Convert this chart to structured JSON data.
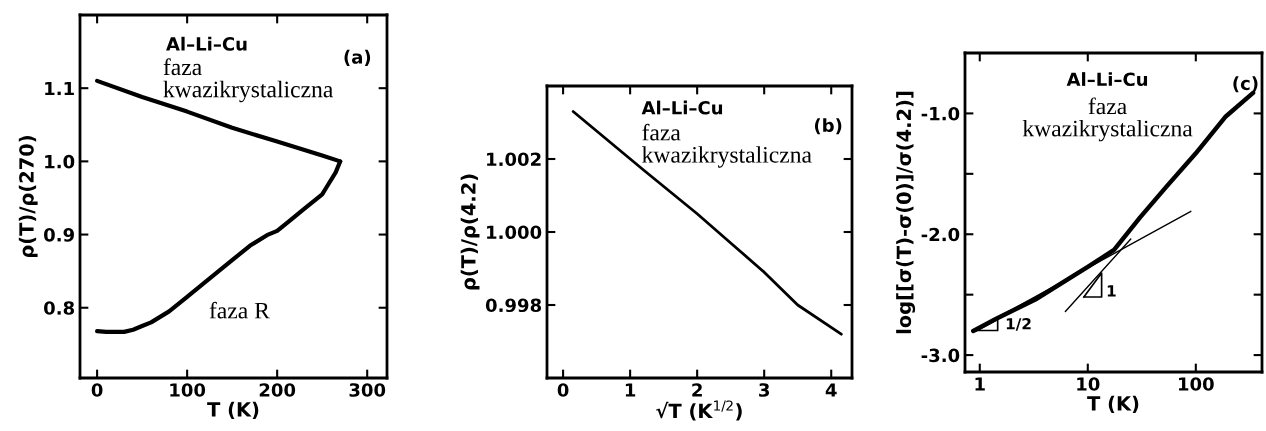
{
  "chart_data": [
    {
      "type": "line",
      "xlabel": "T (K)",
      "ylabel": "ρ(T)/ρ(270)",
      "xlim": [
        -19,
        322
      ],
      "ylim": [
        0.704,
        1.2
      ],
      "xticks": [
        0,
        100,
        200,
        300
      ],
      "yticks": [
        0.8,
        0.9,
        {
          "value": 1.0,
          "label": "1.0"
        },
        1.1
      ],
      "grid": false,
      "legend": false,
      "marker": "none",
      "line_style": "solid",
      "annotations": [
        "Al–Li–Cu",
        "faza\nkwazikrystaliczna",
        "(a)",
        "faza R"
      ],
      "series": [
        {
          "color": "#000000",
          "x": [
            0,
            50,
            100,
            150,
            200,
            250,
            270
          ],
          "values": [
            1.11,
            1.088,
            1.068,
            1.046,
            1.027,
            1.008,
            1.0
          ]
        },
        {
          "color": "#000000",
          "x": [
            0,
            10,
            20,
            30,
            40,
            50,
            60,
            80,
            100,
            120,
            150,
            170,
            190,
            200,
            210,
            230,
            250,
            255,
            265,
            270
          ],
          "values": [
            0.768,
            0.767,
            0.767,
            0.767,
            0.77,
            0.775,
            0.78,
            0.795,
            0.815,
            0.835,
            0.865,
            0.885,
            0.9,
            0.905,
            0.915,
            0.935,
            0.955,
            0.965,
            0.985,
            1.0
          ]
        }
      ]
    },
    {
      "type": "line",
      "xlabel": "√T (K$^{1/2}$)",
      "ylabel": "ρ(T)/ρ(4.2)",
      "xlim": [
        -0.24,
        4.31
      ],
      "ylim": [
        0.996,
        1.004
      ],
      "xticks": [
        0,
        1,
        2,
        3,
        4
      ],
      "yticks": [
        {
          "value": 0.998,
          "label": "0.998"
        },
        {
          "value": 1.0,
          "label": "1.000"
        },
        {
          "value": 1.002,
          "label": "1.002"
        }
      ],
      "grid": false,
      "legend": false,
      "marker": "none",
      "line_style": "solid",
      "annotations": [
        "Al–Li–Cu",
        "faza\nkwazikrystaliczna",
        "(b)"
      ],
      "series": [
        {
          "color": "#000000",
          "x": [
            0.15,
            1.2,
            2.0,
            2.5,
            3.0,
            3.5,
            4.15
          ],
          "values": [
            1.0033,
            1.0017,
            1.0005,
            0.9997,
            0.9989,
            0.998,
            0.9972
          ]
        }
      ]
    },
    {
      "type": "line",
      "xlabel": "T (K)",
      "ylabel": "log[[σ(T)-σ(0)]/σ(4.2)]",
      "log": "x",
      "xlim": [
        0.73,
        410
      ],
      "ylim": [
        -3.14,
        -0.5
      ],
      "xticks": [
        1,
        10,
        100
      ],
      "yticks": [
        {
          "value": -3.0,
          "label": "-3.0"
        },
        {
          "value": -2.5,
          "label": null
        },
        {
          "value": -2.0,
          "label": "-2.0"
        },
        {
          "value": -1.5,
          "label": null
        },
        {
          "value": -1.0,
          "label": "-1.0"
        }
      ],
      "grid": false,
      "legend": false,
      "marker": "none",
      "line_style": "solid",
      "annotations": [
        "Al–Li–Cu",
        "faza\nkwazikrystaliczna",
        "(c)",
        "1/2",
        "1"
      ],
      "series": [
        {
          "color": "#000000",
          "x": [
            0.87,
            1.42,
            3.27,
            10,
            17.5,
            30.5,
            53,
            100,
            187,
            339
          ],
          "values": [
            -2.8,
            -2.7,
            -2.54,
            -2.27,
            -2.13,
            -1.86,
            -1.61,
            -1.33,
            -1.03,
            -0.83
          ]
        },
        {
          "color": "#000000",
          "x": [
            0.87,
            90
          ],
          "values": [
            -2.8,
            -1.81
          ]
        },
        {
          "color": "#000000",
          "x": [
            6.2,
            25
          ],
          "values": [
            -2.64,
            -2.04
          ]
        }
      ]
    }
  ]
}
